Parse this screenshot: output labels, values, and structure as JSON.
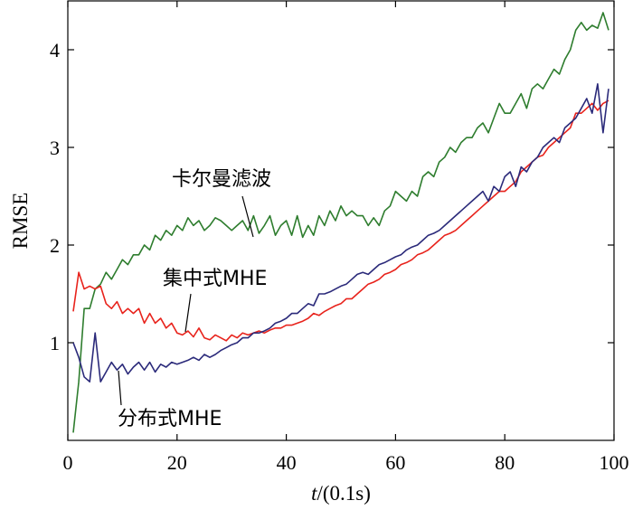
{
  "chart_data": {
    "type": "line",
    "xlabel_italic": "t",
    "xlabel_rest": "/(0.1s)",
    "ylabel": "RMSE",
    "xlim": [
      0,
      100
    ],
    "ylim": [
      0,
      4.5
    ],
    "xticks": [
      0,
      20,
      40,
      60,
      80,
      100
    ],
    "yticks": [
      1,
      2,
      3,
      4
    ],
    "grid": false,
    "series": [
      {
        "name": "卡尔曼滤波",
        "color": "#2e7d2e",
        "points": [
          [
            1,
            0.08
          ],
          [
            2,
            0.6
          ],
          [
            3,
            1.35
          ],
          [
            4,
            1.35
          ],
          [
            5,
            1.55
          ],
          [
            6,
            1.6
          ],
          [
            7,
            1.72
          ],
          [
            8,
            1.65
          ],
          [
            9,
            1.75
          ],
          [
            10,
            1.85
          ],
          [
            11,
            1.8
          ],
          [
            12,
            1.9
          ],
          [
            13,
            1.9
          ],
          [
            14,
            2.0
          ],
          [
            15,
            1.95
          ],
          [
            16,
            2.1
          ],
          [
            17,
            2.05
          ],
          [
            18,
            2.15
          ],
          [
            19,
            2.1
          ],
          [
            20,
            2.2
          ],
          [
            21,
            2.15
          ],
          [
            22,
            2.28
          ],
          [
            23,
            2.2
          ],
          [
            24,
            2.25
          ],
          [
            25,
            2.15
          ],
          [
            26,
            2.2
          ],
          [
            27,
            2.28
          ],
          [
            28,
            2.25
          ],
          [
            29,
            2.2
          ],
          [
            30,
            2.15
          ],
          [
            31,
            2.2
          ],
          [
            32,
            2.25
          ],
          [
            33,
            2.15
          ],
          [
            34,
            2.3
          ],
          [
            35,
            2.12
          ],
          [
            36,
            2.2
          ],
          [
            37,
            2.3
          ],
          [
            38,
            2.1
          ],
          [
            39,
            2.2
          ],
          [
            40,
            2.25
          ],
          [
            41,
            2.1
          ],
          [
            42,
            2.3
          ],
          [
            43,
            2.08
          ],
          [
            44,
            2.2
          ],
          [
            45,
            2.1
          ],
          [
            46,
            2.3
          ],
          [
            47,
            2.2
          ],
          [
            48,
            2.35
          ],
          [
            49,
            2.25
          ],
          [
            50,
            2.4
          ],
          [
            51,
            2.3
          ],
          [
            52,
            2.35
          ],
          [
            53,
            2.3
          ],
          [
            54,
            2.3
          ],
          [
            55,
            2.2
          ],
          [
            56,
            2.28
          ],
          [
            57,
            2.2
          ],
          [
            58,
            2.35
          ],
          [
            59,
            2.4
          ],
          [
            60,
            2.55
          ],
          [
            61,
            2.5
          ],
          [
            62,
            2.45
          ],
          [
            63,
            2.55
          ],
          [
            64,
            2.5
          ],
          [
            65,
            2.7
          ],
          [
            66,
            2.75
          ],
          [
            67,
            2.7
          ],
          [
            68,
            2.85
          ],
          [
            69,
            2.9
          ],
          [
            70,
            3.0
          ],
          [
            71,
            2.95
          ],
          [
            72,
            3.05
          ],
          [
            73,
            3.1
          ],
          [
            74,
            3.1
          ],
          [
            75,
            3.2
          ],
          [
            76,
            3.25
          ],
          [
            77,
            3.15
          ],
          [
            78,
            3.3
          ],
          [
            79,
            3.45
          ],
          [
            80,
            3.35
          ],
          [
            81,
            3.35
          ],
          [
            82,
            3.45
          ],
          [
            83,
            3.55
          ],
          [
            84,
            3.4
          ],
          [
            85,
            3.6
          ],
          [
            86,
            3.65
          ],
          [
            87,
            3.6
          ],
          [
            88,
            3.7
          ],
          [
            89,
            3.8
          ],
          [
            90,
            3.75
          ],
          [
            91,
            3.9
          ],
          [
            92,
            4.0
          ],
          [
            93,
            4.2
          ],
          [
            94,
            4.28
          ],
          [
            95,
            4.2
          ],
          [
            96,
            4.25
          ],
          [
            97,
            4.22
          ],
          [
            98,
            4.38
          ],
          [
            99,
            4.2
          ]
        ]
      },
      {
        "name": "集中式MHE",
        "color": "#e8231c",
        "points": [
          [
            1,
            1.32
          ],
          [
            2,
            1.72
          ],
          [
            3,
            1.55
          ],
          [
            4,
            1.58
          ],
          [
            5,
            1.55
          ],
          [
            6,
            1.58
          ],
          [
            7,
            1.4
          ],
          [
            8,
            1.35
          ],
          [
            9,
            1.42
          ],
          [
            10,
            1.3
          ],
          [
            11,
            1.35
          ],
          [
            12,
            1.3
          ],
          [
            13,
            1.35
          ],
          [
            14,
            1.2
          ],
          [
            15,
            1.3
          ],
          [
            16,
            1.2
          ],
          [
            17,
            1.25
          ],
          [
            18,
            1.15
          ],
          [
            19,
            1.2
          ],
          [
            20,
            1.1
          ],
          [
            21,
            1.08
          ],
          [
            22,
            1.12
          ],
          [
            23,
            1.06
          ],
          [
            24,
            1.15
          ],
          [
            25,
            1.05
          ],
          [
            26,
            1.03
          ],
          [
            27,
            1.08
          ],
          [
            28,
            1.05
          ],
          [
            29,
            1.02
          ],
          [
            30,
            1.08
          ],
          [
            31,
            1.05
          ],
          [
            32,
            1.1
          ],
          [
            33,
            1.08
          ],
          [
            34,
            1.1
          ],
          [
            35,
            1.12
          ],
          [
            36,
            1.1
          ],
          [
            37,
            1.13
          ],
          [
            38,
            1.15
          ],
          [
            39,
            1.15
          ],
          [
            40,
            1.18
          ],
          [
            41,
            1.18
          ],
          [
            42,
            1.2
          ],
          [
            43,
            1.22
          ],
          [
            44,
            1.25
          ],
          [
            45,
            1.3
          ],
          [
            46,
            1.28
          ],
          [
            47,
            1.32
          ],
          [
            48,
            1.35
          ],
          [
            49,
            1.38
          ],
          [
            50,
            1.4
          ],
          [
            51,
            1.45
          ],
          [
            52,
            1.45
          ],
          [
            53,
            1.5
          ],
          [
            54,
            1.55
          ],
          [
            55,
            1.6
          ],
          [
            56,
            1.62
          ],
          [
            57,
            1.65
          ],
          [
            58,
            1.7
          ],
          [
            59,
            1.72
          ],
          [
            60,
            1.75
          ],
          [
            61,
            1.8
          ],
          [
            62,
            1.82
          ],
          [
            63,
            1.85
          ],
          [
            64,
            1.9
          ],
          [
            65,
            1.92
          ],
          [
            66,
            1.95
          ],
          [
            67,
            2.0
          ],
          [
            68,
            2.05
          ],
          [
            69,
            2.1
          ],
          [
            70,
            2.12
          ],
          [
            71,
            2.15
          ],
          [
            72,
            2.2
          ],
          [
            73,
            2.25
          ],
          [
            74,
            2.3
          ],
          [
            75,
            2.35
          ],
          [
            76,
            2.4
          ],
          [
            77,
            2.45
          ],
          [
            78,
            2.5
          ],
          [
            79,
            2.55
          ],
          [
            80,
            2.55
          ],
          [
            81,
            2.6
          ],
          [
            82,
            2.65
          ],
          [
            83,
            2.75
          ],
          [
            84,
            2.8
          ],
          [
            85,
            2.85
          ],
          [
            86,
            2.9
          ],
          [
            87,
            2.92
          ],
          [
            88,
            3.0
          ],
          [
            89,
            3.05
          ],
          [
            90,
            3.1
          ],
          [
            91,
            3.15
          ],
          [
            92,
            3.2
          ],
          [
            93,
            3.35
          ],
          [
            94,
            3.35
          ],
          [
            95,
            3.4
          ],
          [
            96,
            3.45
          ],
          [
            97,
            3.38
          ],
          [
            98,
            3.45
          ],
          [
            99,
            3.48
          ]
        ]
      },
      {
        "name": "分布式MHE",
        "color": "#2b2a7a",
        "points": [
          [
            1,
            1.0
          ],
          [
            2,
            0.85
          ],
          [
            3,
            0.65
          ],
          [
            4,
            0.6
          ],
          [
            5,
            1.1
          ],
          [
            6,
            0.6
          ],
          [
            7,
            0.7
          ],
          [
            8,
            0.8
          ],
          [
            9,
            0.72
          ],
          [
            10,
            0.78
          ],
          [
            11,
            0.68
          ],
          [
            12,
            0.75
          ],
          [
            13,
            0.8
          ],
          [
            14,
            0.72
          ],
          [
            15,
            0.8
          ],
          [
            16,
            0.7
          ],
          [
            17,
            0.78
          ],
          [
            18,
            0.75
          ],
          [
            19,
            0.8
          ],
          [
            20,
            0.78
          ],
          [
            21,
            0.8
          ],
          [
            22,
            0.82
          ],
          [
            23,
            0.85
          ],
          [
            24,
            0.82
          ],
          [
            25,
            0.88
          ],
          [
            26,
            0.85
          ],
          [
            27,
            0.88
          ],
          [
            28,
            0.92
          ],
          [
            29,
            0.95
          ],
          [
            30,
            0.98
          ],
          [
            31,
            1.0
          ],
          [
            32,
            1.05
          ],
          [
            33,
            1.05
          ],
          [
            34,
            1.1
          ],
          [
            35,
            1.1
          ],
          [
            36,
            1.12
          ],
          [
            37,
            1.15
          ],
          [
            38,
            1.2
          ],
          [
            39,
            1.22
          ],
          [
            40,
            1.25
          ],
          [
            41,
            1.3
          ],
          [
            42,
            1.3
          ],
          [
            43,
            1.35
          ],
          [
            44,
            1.4
          ],
          [
            45,
            1.38
          ],
          [
            46,
            1.5
          ],
          [
            47,
            1.5
          ],
          [
            48,
            1.52
          ],
          [
            49,
            1.55
          ],
          [
            50,
            1.58
          ],
          [
            51,
            1.6
          ],
          [
            52,
            1.65
          ],
          [
            53,
            1.7
          ],
          [
            54,
            1.72
          ],
          [
            55,
            1.7
          ],
          [
            56,
            1.75
          ],
          [
            57,
            1.8
          ],
          [
            58,
            1.82
          ],
          [
            59,
            1.85
          ],
          [
            60,
            1.88
          ],
          [
            61,
            1.9
          ],
          [
            62,
            1.95
          ],
          [
            63,
            1.98
          ],
          [
            64,
            2.0
          ],
          [
            65,
            2.05
          ],
          [
            66,
            2.1
          ],
          [
            67,
            2.12
          ],
          [
            68,
            2.15
          ],
          [
            69,
            2.2
          ],
          [
            70,
            2.25
          ],
          [
            71,
            2.3
          ],
          [
            72,
            2.35
          ],
          [
            73,
            2.4
          ],
          [
            74,
            2.45
          ],
          [
            75,
            2.5
          ],
          [
            76,
            2.55
          ],
          [
            77,
            2.45
          ],
          [
            78,
            2.6
          ],
          [
            79,
            2.55
          ],
          [
            80,
            2.7
          ],
          [
            81,
            2.75
          ],
          [
            82,
            2.6
          ],
          [
            83,
            2.8
          ],
          [
            84,
            2.75
          ],
          [
            85,
            2.85
          ],
          [
            86,
            2.9
          ],
          [
            87,
            3.0
          ],
          [
            88,
            3.05
          ],
          [
            89,
            3.1
          ],
          [
            90,
            3.05
          ],
          [
            91,
            3.2
          ],
          [
            92,
            3.25
          ],
          [
            93,
            3.3
          ],
          [
            94,
            3.4
          ],
          [
            95,
            3.5
          ],
          [
            96,
            3.35
          ],
          [
            97,
            3.65
          ],
          [
            98,
            3.15
          ],
          [
            99,
            3.6
          ]
        ]
      }
    ],
    "annotations": [
      {
        "text": "卡尔曼滤波",
        "target": [
          34,
          2.25
        ]
      },
      {
        "text": "集中式MHE",
        "target": [
          22,
          1.08
        ]
      },
      {
        "text": "分布式MHE",
        "target": [
          15,
          0.75
        ]
      }
    ]
  }
}
